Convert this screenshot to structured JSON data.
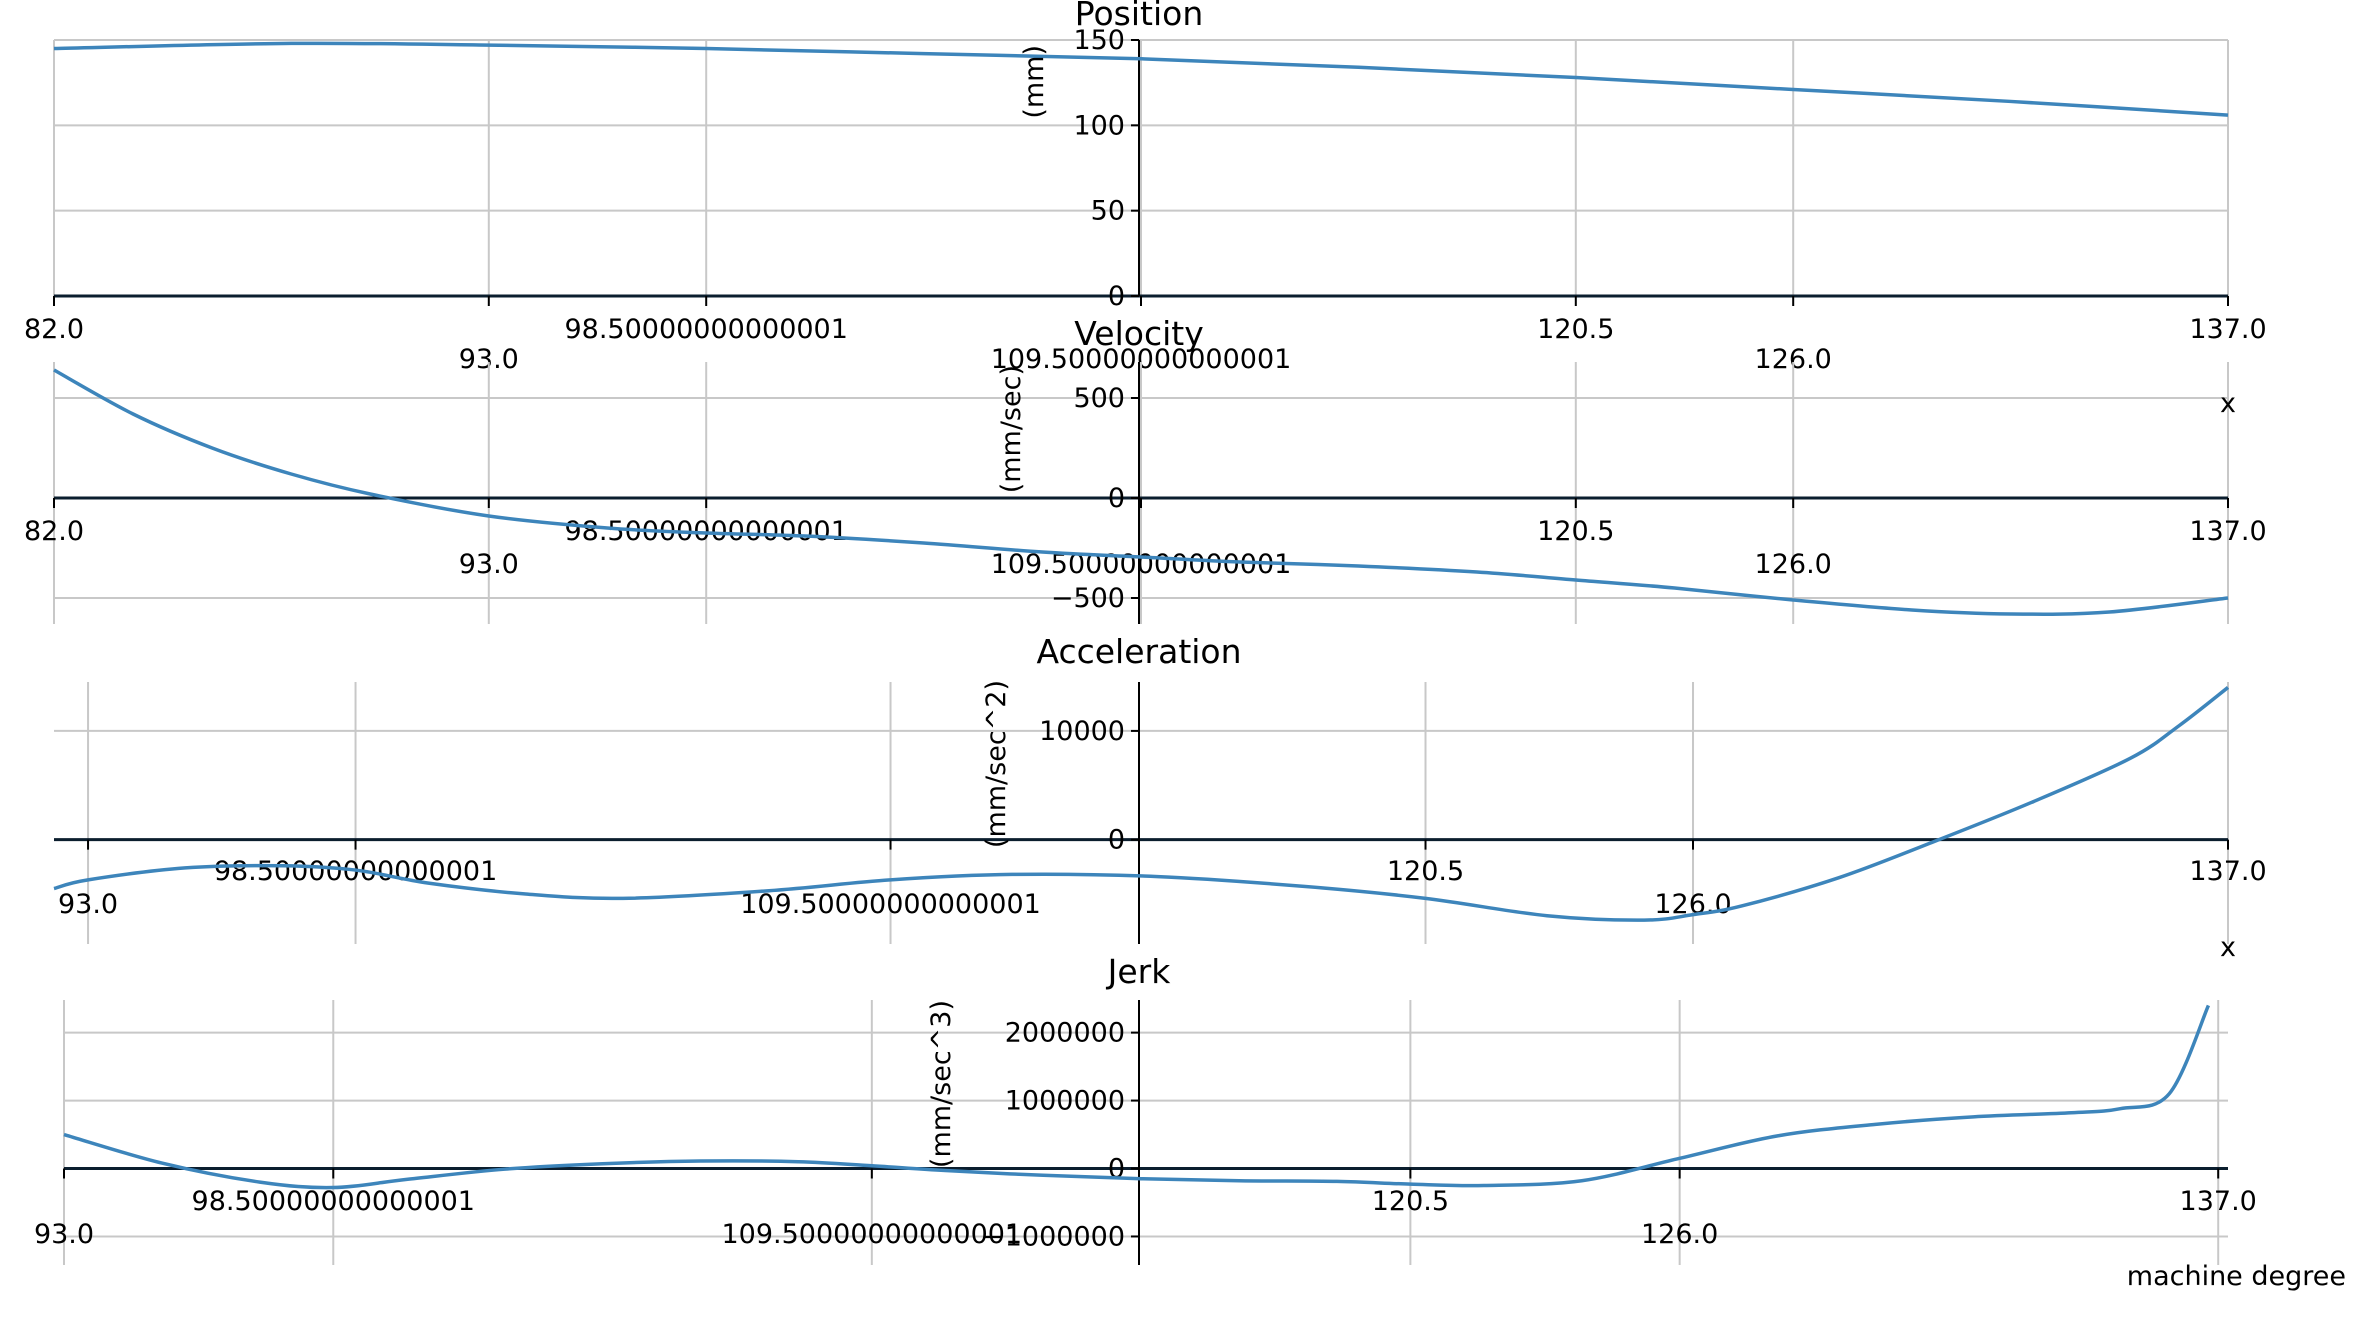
{
  "chart_data": [
    {
      "type": "line",
      "title": "Position",
      "ylabel": "(mm)",
      "xlabel": "",
      "x_ticks_upper": [
        "82.0",
        "98.50000000000001",
        "120.5",
        "137.0"
      ],
      "x_ticks_lower": [
        "93.0",
        "109.50000000000001",
        "126.0"
      ],
      "y_ticks": [
        "0",
        "50",
        "100",
        "150"
      ],
      "xlim": [
        82,
        137
      ],
      "ylim": [
        0,
        150
      ],
      "grid": true,
      "series": [
        {
          "x": [
            82,
            88,
            93,
            98.5,
            104,
            109.5,
            115,
            120.5,
            126,
            131.5,
            137
          ],
          "values": [
            145,
            148,
            147,
            145,
            142,
            139,
            134,
            128,
            121,
            114,
            106
          ]
        }
      ]
    },
    {
      "type": "line",
      "title": "Velocity",
      "ylabel": "(mm/sec)",
      "xlabel": "x",
      "x_ticks_upper": [
        "82.0",
        "98.50000000000001",
        "120.5",
        "137.0"
      ],
      "x_ticks_lower": [
        "93.0",
        "109.50000000000001",
        "126.0"
      ],
      "y_ticks": [
        "500",
        "0",
        "−500"
      ],
      "xlim": [
        82,
        137
      ],
      "ylim": [
        -630,
        680
      ],
      "grid": true,
      "series": [
        {
          "x": [
            82,
            84,
            86,
            88,
            90,
            93,
            96,
            98.5,
            101,
            104,
            107,
            109.5,
            112,
            115,
            118,
            120.5,
            123,
            126,
            129,
            131.5,
            134,
            137
          ],
          "values": [
            640,
            420,
            250,
            120,
            20,
            -90,
            -150,
            -175,
            -190,
            -225,
            -270,
            -295,
            -320,
            -340,
            -370,
            -410,
            -450,
            -510,
            -560,
            -580,
            -570,
            -500
          ]
        }
      ]
    },
    {
      "type": "line",
      "title": "Acceleration",
      "ylabel": "(mm/sec^2)",
      "xlabel": "x",
      "x_ticks_upper": [
        "98.50000000000001",
        "120.5",
        "137.0"
      ],
      "x_ticks_lower": [
        "93.0",
        "109.50000000000001",
        "126.0"
      ],
      "y_ticks": [
        "10000",
        "0"
      ],
      "xlim": [
        92.3,
        137
      ],
      "ylim": [
        -9600,
        14500
      ],
      "grid": true,
      "series": [
        {
          "x": [
            92.3,
            93,
            95,
            97,
            98.5,
            100,
            102,
            104,
            107,
            109.5,
            112,
            115,
            118,
            120.5,
            123,
            125,
            126,
            127,
            129,
            131,
            133,
            135,
            136,
            137
          ],
          "values": [
            -4500,
            -3700,
            -2600,
            -2400,
            -2800,
            -4000,
            -5000,
            -5400,
            -4700,
            -3700,
            -3200,
            -3400,
            -4300,
            -5400,
            -7000,
            -7400,
            -6900,
            -6100,
            -3500,
            -100,
            3500,
            7500,
            10500,
            14000
          ]
        }
      ]
    },
    {
      "type": "line",
      "title": "Jerk",
      "ylabel": "(mm/sec^3)",
      "xlabel": "machine degree",
      "x_ticks_upper": [
        "98.50000000000001",
        "120.5",
        "137.0"
      ],
      "x_ticks_lower": [
        "93.0",
        "109.50000000000001",
        "126.0"
      ],
      "y_ticks": [
        "2000000",
        "1000000",
        "0",
        "−1000000"
      ],
      "xlim": [
        93,
        137.2
      ],
      "ylim": [
        -1420000,
        2480000
      ],
      "grid": true,
      "series": [
        {
          "x": [
            93,
            95,
            97,
            98.5,
            100,
            102,
            104,
            106,
            108,
            109.5,
            111,
            113,
            115,
            117,
            119,
            120.5,
            122,
            124,
            126,
            128,
            130,
            132,
            134,
            135,
            136,
            136.8
          ],
          "values": [
            500000,
            80000,
            -200000,
            -280000,
            -160000,
            -10000,
            70000,
            110000,
            100000,
            40000,
            -30000,
            -100000,
            -150000,
            -180000,
            -190000,
            -230000,
            -250000,
            -180000,
            150000,
            480000,
            650000,
            760000,
            820000,
            880000,
            1100000,
            2400000
          ]
        }
      ]
    }
  ]
}
